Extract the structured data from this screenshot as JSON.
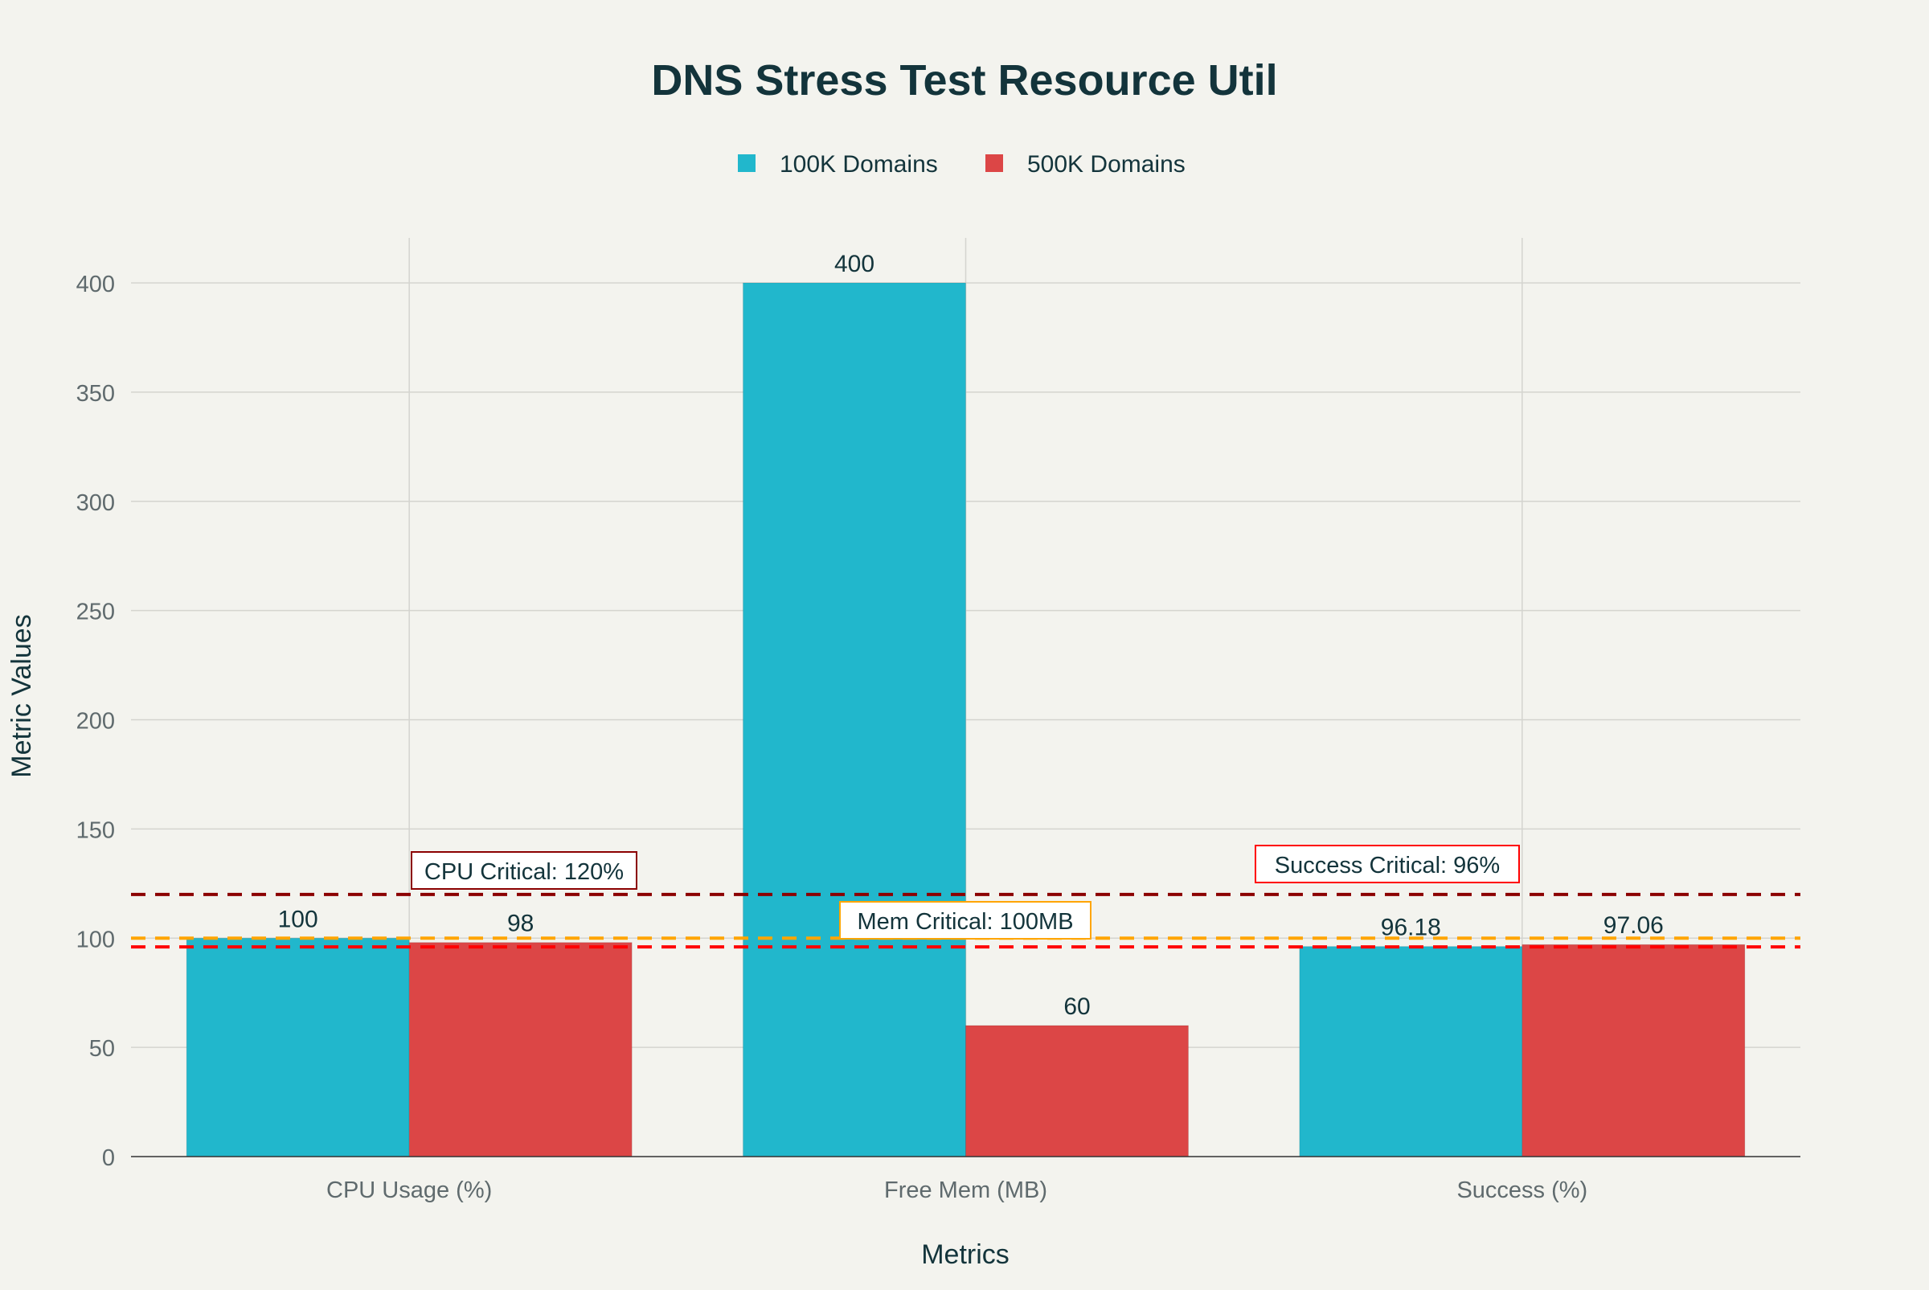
{
  "chart_data": {
    "type": "bar",
    "title": "DNS Stress Test Resource Util",
    "xlabel": "Metrics",
    "ylabel": "Metric Values",
    "categories": [
      "CPU Usage (%)",
      "Free Mem (MB)",
      "Success (%)"
    ],
    "series": [
      {
        "name": "100K Domains",
        "color": "#21b7cc",
        "values": [
          100,
          400,
          96.18
        ],
        "labels": [
          "100",
          "400",
          "96.18"
        ]
      },
      {
        "name": "500K Domains",
        "color": "#dc4646",
        "values": [
          98,
          60,
          97.06
        ],
        "labels": [
          "98",
          "60",
          "97.06"
        ]
      }
    ],
    "ylim": [
      0,
      420
    ],
    "yticks": [
      0,
      50,
      100,
      150,
      200,
      250,
      300,
      350,
      400
    ],
    "grid": true,
    "legend_position": "top-center",
    "reference_lines": [
      {
        "value": 120,
        "label": "CPU Critical: 120%",
        "color": "#8b0000",
        "category": 0
      },
      {
        "value": 100,
        "label": "Mem Critical: 100MB",
        "color": "#ffa500",
        "category": 1
      },
      {
        "value": 96,
        "label": "Success Critical: 96%",
        "color": "#ff0000",
        "category": 2
      }
    ]
  }
}
